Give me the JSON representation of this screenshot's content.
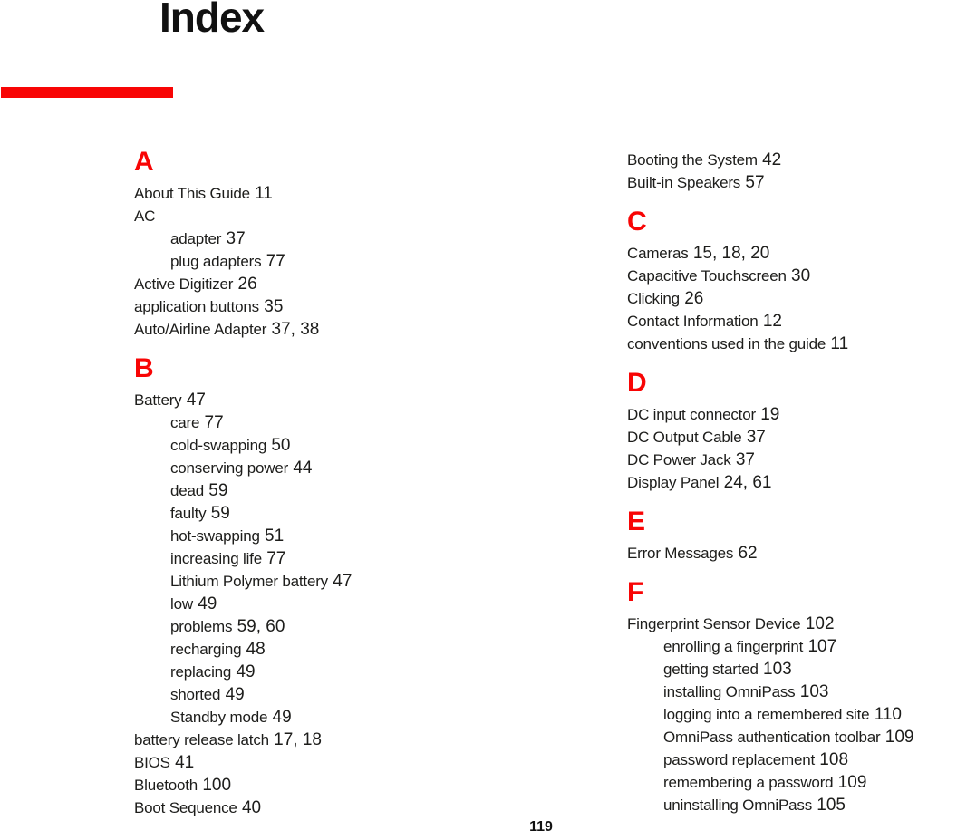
{
  "page": {
    "title": "Index",
    "page_number": "119"
  },
  "colors": {
    "accent_red": "#f80505",
    "text": "#1d1d1b"
  },
  "columns": [
    {
      "name": "left-column",
      "sections": [
        {
          "letter": "A",
          "entries": [
            {
              "label": "About This Guide",
              "pages": "11",
              "indent": 0
            },
            {
              "label": "AC",
              "pages": "",
              "indent": 0
            },
            {
              "label": "adapter",
              "pages": "37",
              "indent": 1
            },
            {
              "label": "plug adapters",
              "pages": "77",
              "indent": 1
            },
            {
              "label": "Active Digitizer",
              "pages": "26",
              "indent": 0
            },
            {
              "label": "application buttons",
              "pages": "35",
              "indent": 0
            },
            {
              "label": "Auto/Airline Adapter",
              "pages": "37, 38",
              "indent": 0
            }
          ]
        },
        {
          "letter": "B",
          "entries": [
            {
              "label": "Battery",
              "pages": "47",
              "indent": 0
            },
            {
              "label": "care",
              "pages": "77",
              "indent": 1
            },
            {
              "label": "cold-swapping",
              "pages": "50",
              "indent": 1
            },
            {
              "label": "conserving power",
              "pages": "44",
              "indent": 1
            },
            {
              "label": "dead",
              "pages": "59",
              "indent": 1
            },
            {
              "label": "faulty",
              "pages": "59",
              "indent": 1
            },
            {
              "label": "hot-swapping",
              "pages": "51",
              "indent": 1
            },
            {
              "label": "increasing life",
              "pages": "77",
              "indent": 1
            },
            {
              "label": "Lithium Polymer battery",
              "pages": "47",
              "indent": 1
            },
            {
              "label": "low",
              "pages": "49",
              "indent": 1
            },
            {
              "label": "problems",
              "pages": "59, 60",
              "indent": 1
            },
            {
              "label": "recharging",
              "pages": "48",
              "indent": 1
            },
            {
              "label": "replacing",
              "pages": "49",
              "indent": 1
            },
            {
              "label": "shorted",
              "pages": "49",
              "indent": 1
            },
            {
              "label": "Standby mode",
              "pages": "49",
              "indent": 1
            },
            {
              "label": "battery release latch",
              "pages": "17, 18",
              "indent": 0
            },
            {
              "label": "BIOS",
              "pages": "41",
              "indent": 0
            },
            {
              "label": "Bluetooth",
              "pages": "100",
              "indent": 0
            },
            {
              "label": "Boot Sequence",
              "pages": "40",
              "indent": 0
            }
          ]
        }
      ]
    },
    {
      "name": "right-column",
      "sections": [
        {
          "letter": "",
          "entries": [
            {
              "label": "Booting the System",
              "pages": "42",
              "indent": 0
            },
            {
              "label": "Built-in Speakers",
              "pages": "57",
              "indent": 0
            }
          ]
        },
        {
          "letter": "C",
          "entries": [
            {
              "label": "Cameras",
              "pages": "15, 18, 20",
              "indent": 0
            },
            {
              "label": "Capacitive Touchscreen",
              "pages": "30",
              "indent": 0
            },
            {
              "label": "Clicking",
              "pages": "26",
              "indent": 0
            },
            {
              "label": "Contact Information",
              "pages": "12",
              "indent": 0
            },
            {
              "label": "conventions used in the guide",
              "pages": "11",
              "indent": 0
            }
          ]
        },
        {
          "letter": "D",
          "entries": [
            {
              "label": "DC input connector",
              "pages": "19",
              "indent": 0
            },
            {
              "label": "DC Output Cable",
              "pages": "37",
              "indent": 0
            },
            {
              "label": "DC Power Jack",
              "pages": "37",
              "indent": 0
            },
            {
              "label": "Display Panel",
              "pages": "24, 61",
              "indent": 0
            }
          ]
        },
        {
          "letter": "E",
          "entries": [
            {
              "label": "Error Messages",
              "pages": "62",
              "indent": 0
            }
          ]
        },
        {
          "letter": "F",
          "entries": [
            {
              "label": "Fingerprint Sensor Device",
              "pages": "102",
              "indent": 0
            },
            {
              "label": "enrolling a fingerprint",
              "pages": "107",
              "indent": 1
            },
            {
              "label": "getting started",
              "pages": "103",
              "indent": 1
            },
            {
              "label": "installing OmniPass",
              "pages": "103",
              "indent": 1
            },
            {
              "label": "logging into a remembered site",
              "pages": "110",
              "indent": 1
            },
            {
              "label": "OmniPass authentication toolbar",
              "pages": "109",
              "indent": 1
            },
            {
              "label": "password replacement",
              "pages": "108",
              "indent": 1
            },
            {
              "label": "remembering a password",
              "pages": "109",
              "indent": 1
            },
            {
              "label": "uninstalling OmniPass",
              "pages": "105",
              "indent": 1
            }
          ]
        }
      ]
    }
  ]
}
